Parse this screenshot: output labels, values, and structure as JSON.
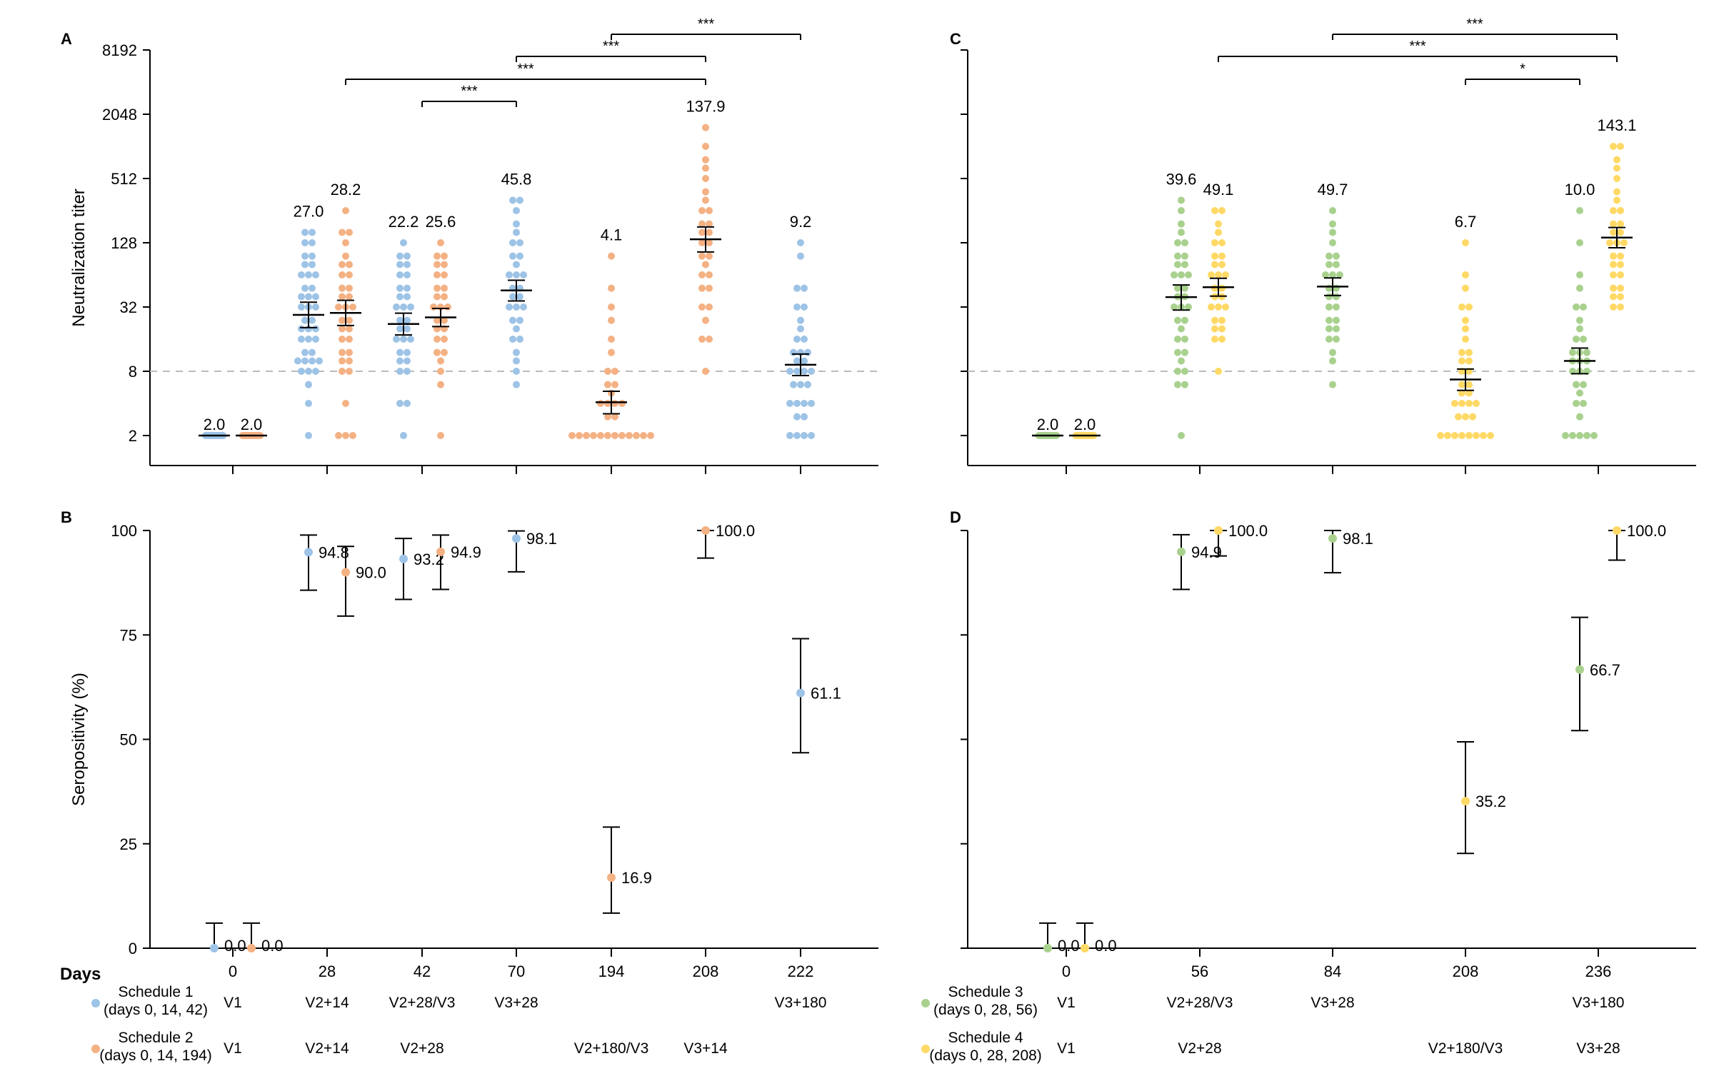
{
  "chart_data": [
    {
      "type": "scatter",
      "panel": "A",
      "ylabel": "Neutralization titer",
      "yscale": "log2",
      "ylim": [
        1.4,
        8192
      ],
      "yticks": [
        "8192",
        "2048",
        "512",
        "128",
        "32",
        "8",
        "2"
      ],
      "ytick_values": [
        8192,
        2048,
        512,
        128,
        32,
        8,
        2
      ],
      "threshold": 8,
      "xticks": [
        "0",
        "28",
        "42",
        "70",
        "194",
        "208",
        "222"
      ],
      "groups": [
        {
          "day": "0",
          "schedule": "Schedule 1",
          "label": "2.0",
          "gmt": 2.0,
          "ci": [
            2.0,
            2.0
          ],
          "values": [
            2,
            2,
            2,
            2,
            2,
            2,
            2,
            2,
            2,
            2,
            2,
            2,
            2,
            2,
            2,
            2,
            2,
            2,
            2,
            2
          ]
        },
        {
          "day": "0",
          "schedule": "Schedule 2",
          "label": "2.0",
          "gmt": 2.0,
          "ci": [
            2.0,
            2.0
          ],
          "values": [
            2,
            2,
            2,
            2,
            2,
            2,
            2,
            2,
            2,
            2,
            2,
            2,
            2,
            2,
            2,
            2,
            2,
            2,
            2,
            2
          ]
        },
        {
          "day": "28",
          "schedule": "Schedule 1",
          "label": "27.0",
          "gmt": 27.0,
          "ci": [
            20.5,
            35.5
          ],
          "values": [
            2,
            4,
            6,
            8,
            8,
            8,
            10,
            10,
            10,
            10,
            12,
            12,
            16,
            16,
            16,
            20,
            20,
            20,
            24,
            24,
            32,
            32,
            32,
            40,
            40,
            40,
            48,
            48,
            64,
            64,
            64,
            80,
            80,
            96,
            96,
            128,
            128,
            160,
            160
          ]
        },
        {
          "day": "28",
          "schedule": "Schedule 2",
          "label": "28.2",
          "gmt": 28.2,
          "ci": [
            21.5,
            37.0
          ],
          "values": [
            2,
            2,
            2,
            4,
            8,
            8,
            10,
            10,
            12,
            12,
            16,
            16,
            20,
            20,
            24,
            24,
            32,
            32,
            32,
            40,
            40,
            48,
            48,
            64,
            64,
            80,
            80,
            96,
            128,
            160,
            160,
            256
          ]
        },
        {
          "day": "42",
          "schedule": "Schedule 1",
          "label": "22.2",
          "gmt": 22.2,
          "ci": [
            17.5,
            28.0
          ],
          "values": [
            2,
            4,
            4,
            8,
            8,
            10,
            10,
            12,
            12,
            16,
            16,
            16,
            20,
            20,
            24,
            24,
            32,
            32,
            32,
            40,
            40,
            48,
            48,
            64,
            64,
            80,
            80,
            96,
            96,
            128
          ]
        },
        {
          "day": "42",
          "schedule": "Schedule 2",
          "label": "25.6",
          "gmt": 25.6,
          "ci": [
            21.0,
            31.0
          ],
          "values": [
            2,
            6,
            8,
            10,
            12,
            12,
            16,
            16,
            20,
            20,
            24,
            24,
            32,
            32,
            32,
            40,
            40,
            48,
            48,
            64,
            64,
            80,
            80,
            96,
            96,
            128
          ]
        },
        {
          "day": "70",
          "schedule": "Schedule 1",
          "label": "45.8",
          "gmt": 45.8,
          "ci": [
            36.5,
            57.0
          ],
          "values": [
            6,
            8,
            10,
            12,
            16,
            16,
            20,
            24,
            24,
            32,
            32,
            32,
            40,
            40,
            48,
            48,
            64,
            64,
            64,
            80,
            96,
            96,
            128,
            128,
            160,
            192,
            256,
            320,
            320
          ]
        },
        {
          "day": "194",
          "schedule": "Schedule 2",
          "label": "4.1",
          "gmt": 4.1,
          "ci": [
            3.2,
            5.2
          ],
          "values": [
            2,
            2,
            2,
            2,
            2,
            2,
            2,
            2,
            2,
            2,
            2,
            2,
            3,
            3,
            4,
            4,
            4,
            4,
            5,
            6,
            6,
            8,
            8,
            12,
            16,
            24,
            32,
            48,
            96
          ]
        },
        {
          "day": "208",
          "schedule": "Schedule 2",
          "label": "137.9",
          "gmt": 137.9,
          "ci": [
            105.0,
            180.0
          ],
          "values": [
            8,
            16,
            16,
            24,
            32,
            32,
            48,
            48,
            64,
            64,
            80,
            96,
            96,
            128,
            128,
            160,
            160,
            192,
            192,
            256,
            256,
            320,
            384,
            512,
            640,
            768,
            1024,
            1536
          ]
        },
        {
          "day": "222",
          "schedule": "Schedule 1",
          "label": "9.2",
          "gmt": 9.2,
          "ci": [
            7.3,
            11.6
          ],
          "values": [
            2,
            2,
            2,
            2,
            3,
            3,
            4,
            4,
            4,
            4,
            6,
            6,
            6,
            8,
            8,
            8,
            8,
            10,
            10,
            12,
            12,
            12,
            16,
            16,
            20,
            24,
            32,
            32,
            48,
            48,
            96,
            128
          ]
        }
      ],
      "significance": [
        {
          "from": "42",
          "to": "70",
          "label": "***"
        },
        {
          "from": "28",
          "to": "208",
          "label": "***"
        },
        {
          "from": "70",
          "to": "208",
          "label": "***"
        },
        {
          "from": "194",
          "to": "222",
          "label": "***"
        }
      ]
    },
    {
      "type": "scatter",
      "panel": "B",
      "ylabel": "Seropositivity (%)",
      "ylim": [
        0,
        100
      ],
      "yticks": [
        "100",
        "75",
        "50",
        "25",
        "0"
      ],
      "ytick_values": [
        100,
        75,
        50,
        25,
        0
      ],
      "xticks": [
        "0",
        "28",
        "42",
        "70",
        "194",
        "208",
        "222"
      ],
      "points": [
        {
          "day": "0",
          "schedule": "Schedule 1",
          "label": "0.0",
          "value": 0.0,
          "ci": [
            0,
            6
          ]
        },
        {
          "day": "0",
          "schedule": "Schedule 2",
          "label": "0.0",
          "value": 0.0,
          "ci": [
            0,
            6
          ]
        },
        {
          "day": "28",
          "schedule": "Schedule 1",
          "label": "94.8",
          "value": 94.8,
          "ci": [
            85.7,
            98.9
          ]
        },
        {
          "day": "28",
          "schedule": "Schedule 2",
          "label": "90.0",
          "value": 90.0,
          "ci": [
            79.5,
            96.2
          ]
        },
        {
          "day": "42",
          "schedule": "Schedule 1",
          "label": "93.2",
          "value": 93.2,
          "ci": [
            83.5,
            98.1
          ]
        },
        {
          "day": "42",
          "schedule": "Schedule 2",
          "label": "94.9",
          "value": 94.9,
          "ci": [
            85.9,
            98.9
          ]
        },
        {
          "day": "70",
          "schedule": "Schedule 1",
          "label": "98.1",
          "value": 98.1,
          "ci": [
            90.1,
            99.9
          ]
        },
        {
          "day": "194",
          "schedule": "Schedule 2",
          "label": "16.9",
          "value": 16.9,
          "ci": [
            8.4,
            29.0
          ]
        },
        {
          "day": "208",
          "schedule": "Schedule 2",
          "label": "100.0",
          "value": 100.0,
          "ci": [
            93.4,
            100
          ]
        },
        {
          "day": "222",
          "schedule": "Schedule 1",
          "label": "61.1",
          "value": 61.1,
          "ci": [
            46.8,
            74.1
          ]
        }
      ]
    },
    {
      "type": "scatter",
      "panel": "C",
      "yscale": "log2",
      "ylim": [
        1.4,
        8192
      ],
      "ytick_values": [
        8192,
        2048,
        512,
        128,
        32,
        8,
        2
      ],
      "threshold": 8,
      "xticks": [
        "0",
        "56",
        "84",
        "208",
        "236"
      ],
      "groups": [
        {
          "day": "0",
          "schedule": "Schedule 3",
          "label": "2.0",
          "gmt": 2.0,
          "ci": [
            2.0,
            2.0
          ],
          "values": [
            2,
            2,
            2,
            2,
            2,
            2,
            2,
            2,
            2,
            2,
            2,
            2,
            2,
            2,
            2,
            2,
            2,
            2,
            2,
            2
          ]
        },
        {
          "day": "0",
          "schedule": "Schedule 4",
          "label": "2.0",
          "gmt": 2.0,
          "ci": [
            2.0,
            2.0
          ],
          "values": [
            2,
            2,
            2,
            2,
            2,
            2,
            2,
            2,
            2,
            2,
            2,
            2,
            2,
            2,
            2,
            2,
            2,
            2,
            2,
            2
          ]
        },
        {
          "day": "56",
          "schedule": "Schedule 3",
          "label": "39.6",
          "gmt": 39.6,
          "ci": [
            30.0,
            51.5
          ],
          "values": [
            2,
            6,
            6,
            8,
            8,
            10,
            12,
            12,
            16,
            16,
            20,
            24,
            24,
            32,
            32,
            32,
            40,
            40,
            48,
            48,
            64,
            64,
            64,
            80,
            80,
            96,
            96,
            128,
            128,
            160,
            192,
            256,
            320
          ]
        },
        {
          "day": "56",
          "schedule": "Schedule 4",
          "label": "49.1",
          "gmt": 49.1,
          "ci": [
            40.5,
            59.5
          ],
          "values": [
            8,
            16,
            16,
            20,
            20,
            24,
            24,
            32,
            32,
            32,
            40,
            40,
            48,
            48,
            64,
            64,
            64,
            80,
            80,
            96,
            96,
            128,
            128,
            160,
            192,
            256,
            256
          ]
        },
        {
          "day": "84",
          "schedule": "Schedule 3",
          "label": "49.7",
          "gmt": 49.7,
          "ci": [
            41.0,
            60.0
          ],
          "values": [
            6,
            10,
            12,
            16,
            16,
            20,
            20,
            24,
            24,
            32,
            32,
            40,
            40,
            48,
            48,
            64,
            64,
            64,
            80,
            80,
            96,
            96,
            128,
            160,
            192,
            256
          ]
        },
        {
          "day": "208",
          "schedule": "Schedule 4",
          "label": "6.7",
          "gmt": 6.7,
          "ci": [
            5.3,
            8.4
          ],
          "values": [
            2,
            2,
            2,
            2,
            2,
            2,
            2,
            2,
            3,
            3,
            3,
            4,
            4,
            4,
            4,
            5,
            5,
            6,
            6,
            8,
            8,
            10,
            10,
            12,
            12,
            16,
            20,
            24,
            32,
            32,
            48,
            64,
            128
          ]
        },
        {
          "day": "236",
          "schedule": "Schedule 3",
          "label": "10.0",
          "gmt": 10.0,
          "ci": [
            7.6,
            13.2
          ],
          "values": [
            2,
            2,
            2,
            2,
            2,
            3,
            4,
            4,
            5,
            6,
            6,
            8,
            8,
            8,
            10,
            10,
            10,
            12,
            12,
            12,
            16,
            16,
            20,
            24,
            32,
            32,
            48,
            64,
            128,
            256
          ]
        },
        {
          "day": "236",
          "schedule": "Schedule 4",
          "label": "143.1",
          "gmt": 143.1,
          "ci": [
            115.0,
            178.0
          ],
          "values": [
            32,
            32,
            40,
            40,
            48,
            48,
            64,
            64,
            80,
            80,
            96,
            96,
            128,
            128,
            128,
            160,
            160,
            192,
            192,
            256,
            256,
            320,
            384,
            512,
            640,
            768,
            1024,
            1024
          ]
        }
      ],
      "significance": [
        {
          "from": "84",
          "to": "236",
          "label": "***"
        },
        {
          "from": "56",
          "to": "236",
          "label": "***"
        },
        {
          "from": "208",
          "to": "236",
          "label": "*"
        }
      ]
    },
    {
      "type": "scatter",
      "panel": "D",
      "ylim": [
        0,
        100
      ],
      "ytick_values": [
        100,
        75,
        50,
        25,
        0
      ],
      "xticks": [
        "0",
        "56",
        "84",
        "208",
        "236"
      ],
      "points": [
        {
          "day": "0",
          "schedule": "Schedule 3",
          "label": "0.0",
          "value": 0.0,
          "ci": [
            0,
            6
          ]
        },
        {
          "day": "0",
          "schedule": "Schedule 4",
          "label": "0.0",
          "value": 0.0,
          "ci": [
            0,
            6
          ]
        },
        {
          "day": "56",
          "schedule": "Schedule 3",
          "label": "94.9",
          "value": 94.9,
          "ci": [
            85.9,
            99.0
          ]
        },
        {
          "day": "56",
          "schedule": "Schedule 4",
          "label": "100.0",
          "value": 100.0,
          "ci": [
            93.9,
            100
          ]
        },
        {
          "day": "84",
          "schedule": "Schedule 3",
          "label": "98.1",
          "value": 98.1,
          "ci": [
            89.9,
            100
          ]
        },
        {
          "day": "208",
          "schedule": "Schedule 4",
          "label": "35.2",
          "value": 35.2,
          "ci": [
            22.7,
            49.4
          ]
        },
        {
          "day": "236",
          "schedule": "Schedule 3",
          "label": "66.7",
          "value": 66.7,
          "ci": [
            52.1,
            79.2
          ]
        },
        {
          "day": "236",
          "schedule": "Schedule 4",
          "label": "100.0",
          "value": 100.0,
          "ci": [
            92.9,
            100
          ]
        }
      ]
    }
  ],
  "days_label": "Days",
  "legend": [
    {
      "name": "Schedule 1",
      "detail": "(days 0, 14, 42)",
      "color": "#9dc3e6",
      "visits": [
        "V1",
        "V2+14",
        "V2+28/V3",
        "V3+28",
        "",
        "",
        "V3+180"
      ]
    },
    {
      "name": "Schedule 2",
      "detail": "(days 0, 14, 194)",
      "color": "#f4b183",
      "visits": [
        "V1",
        "V2+14",
        "V2+28",
        "",
        "V2+180/V3",
        "V3+14",
        ""
      ]
    },
    {
      "name": "Schedule 3",
      "detail": "(days 0, 28, 56)",
      "color": "#a9d18e",
      "visits": [
        "V1",
        "V2+28/V3",
        "V3+28",
        "",
        "V3+180"
      ]
    },
    {
      "name": "Schedule 4",
      "detail": "(days 0, 28, 208)",
      "color": "#ffd966",
      "visits": [
        "V1",
        "V2+28",
        "",
        "V2+180/V3",
        "V3+28"
      ]
    }
  ],
  "colors": {
    "Schedule 1": "#9dc3e6",
    "Schedule 2": "#f4b183",
    "Schedule 3": "#a9d18e",
    "Schedule 4": "#ffd966",
    "threshold": "#bbbbbb"
  }
}
